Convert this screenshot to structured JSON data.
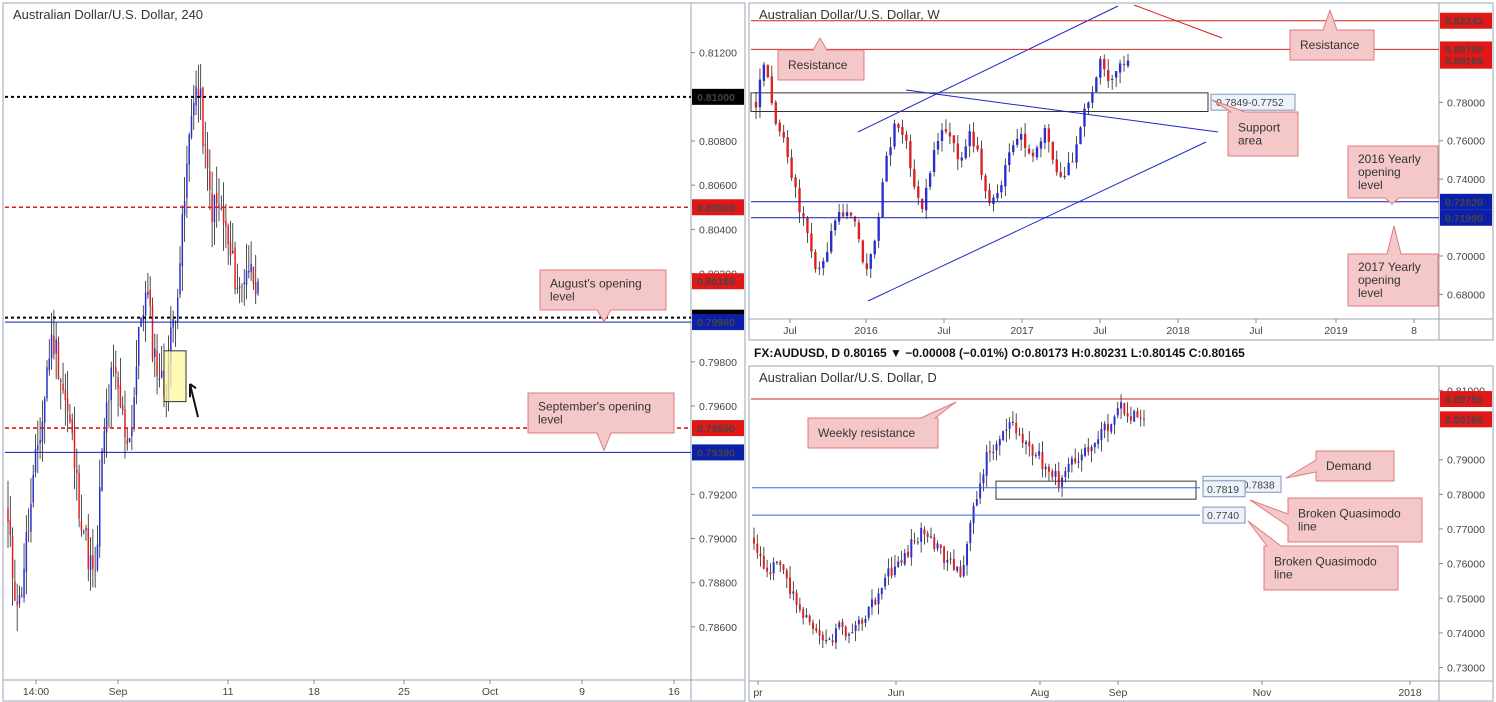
{
  "chart_data": [
    {
      "id": "h4",
      "type": "candlestick",
      "title": "Australian Dollar/U.S. Dollar, 240",
      "x_ticks": [
        "14:00",
        "Sep",
        "11",
        "18",
        "25",
        "Oct",
        "9",
        "16"
      ],
      "y_ticks": [
        "0.81200",
        "0.80800",
        "0.80600",
        "0.80400",
        "0.80200",
        "0.79800",
        "0.79600",
        "0.79200",
        "0.79000",
        "0.78800",
        "0.78600"
      ],
      "ylim": [
        0.7845,
        0.8128
      ],
      "levels": [
        {
          "label": "0.81000",
          "value": 0.81,
          "style": "dotted-black"
        },
        {
          "label": "0.80500",
          "value": 0.805,
          "style": "dashed-red"
        },
        {
          "label": "0.80165",
          "value": 0.80165,
          "style": "price-red"
        },
        {
          "label": "0.80000",
          "value": 0.8,
          "style": "dotted-black"
        },
        {
          "label": "0.79980",
          "value": 0.7998,
          "style": "solid-blue"
        },
        {
          "label": "0.79500",
          "value": 0.795,
          "style": "dashed-red"
        },
        {
          "label": "0.79390",
          "value": 0.7939,
          "style": "solid-blue"
        }
      ],
      "annotations": [
        {
          "label": "August's opening level",
          "target_price": 0.8
        },
        {
          "label": "September's opening level",
          "target_price": 0.7939
        }
      ],
      "path": [
        0.7905,
        0.788,
        0.787,
        0.7895,
        0.7915,
        0.794,
        0.7955,
        0.7985,
        0.799,
        0.7975,
        0.796,
        0.7945,
        0.792,
        0.7905,
        0.789,
        0.788,
        0.793,
        0.796,
        0.7975,
        0.7965,
        0.795,
        0.7945,
        0.7975,
        0.8005,
        0.801,
        0.7985,
        0.7975,
        0.7965,
        0.799,
        0.801,
        0.804,
        0.8075,
        0.8105,
        0.81,
        0.807,
        0.805,
        0.805,
        0.8045,
        0.803,
        0.802,
        0.801,
        0.8025,
        0.802,
        0.80165
      ]
    },
    {
      "id": "weekly",
      "type": "candlestick",
      "title": "Australian Dollar/U.S. Dollar, W",
      "x_ticks": [
        "Jul",
        "2016",
        "Jul",
        "2017",
        "Jul",
        "2018",
        "Jul",
        "2019",
        "8"
      ],
      "y_ticks": [
        "0.78000",
        "0.76000",
        "0.74000",
        "0.70000",
        "0.68000"
      ],
      "ylim": [
        0.6745,
        0.8275
      ],
      "levels": [
        {
          "label": "0.82243",
          "value": 0.82243,
          "style": "solid-red"
        },
        {
          "label": "0.80750",
          "value": 0.8075,
          "style": "solid-red"
        },
        {
          "label": "0.80165",
          "value": 0.80165,
          "style": "price-red"
        },
        {
          "label": "0.72820",
          "value": 0.7282,
          "style": "solid-blue"
        },
        {
          "label": "0.71990",
          "value": 0.7199,
          "style": "solid-blue"
        }
      ],
      "zone": {
        "label": "0.7849-0.7752",
        "high": 0.7849,
        "low": 0.7752
      },
      "annotations": [
        {
          "label": "Resistance"
        },
        {
          "label": "Resistance"
        },
        {
          "label": "Support area"
        },
        {
          "label": "2016 Yearly opening level"
        },
        {
          "label": "2017 Yearly opening level"
        }
      ],
      "path": [
        0.78,
        0.8,
        0.77,
        0.76,
        0.74,
        0.72,
        0.7,
        0.69,
        0.71,
        0.72,
        0.725,
        0.71,
        0.69,
        0.715,
        0.75,
        0.77,
        0.76,
        0.74,
        0.725,
        0.75,
        0.765,
        0.76,
        0.75,
        0.765,
        0.75,
        0.725,
        0.73,
        0.75,
        0.765,
        0.755,
        0.75,
        0.765,
        0.75,
        0.74,
        0.75,
        0.77,
        0.785,
        0.8,
        0.79,
        0.8,
        0.80165
      ]
    },
    {
      "id": "daily",
      "type": "candlestick",
      "title": "Australian Dollar/U.S. Dollar, D",
      "header": "FX:AUDUSD, D  0.80165 ▼ −0.00008 (−0.01%)  O:0.80173  H:0.80231  L:0.80145  C:0.80165",
      "x_ticks": [
        "pr",
        "Jun",
        "Aug",
        "Sep",
        "Nov",
        "2018"
      ],
      "y_ticks": [
        "0.81000",
        "0.79000",
        "0.78000",
        "0.77000",
        "0.76000",
        "0.75000",
        "0.74000",
        "0.73000"
      ],
      "ylim": [
        0.729,
        0.813
      ],
      "levels": [
        {
          "label": "0.80750",
          "value": 0.8075,
          "style": "solid-red"
        },
        {
          "label": "0.80165",
          "value": 0.80165,
          "style": "price-red"
        }
      ],
      "boxes": [
        {
          "label": "0.7786-0.7838",
          "high": 0.7838,
          "low": 0.7786
        },
        {
          "label": "0.7819",
          "value": 0.7819
        },
        {
          "label": "0.7740",
          "value": 0.774
        }
      ],
      "annotations": [
        {
          "label": "Weekly resistance"
        },
        {
          "label": "Demand"
        },
        {
          "label": "Broken Quasimodo line"
        },
        {
          "label": "Broken Quasimodo line"
        }
      ],
      "path": [
        0.765,
        0.756,
        0.76,
        0.752,
        0.745,
        0.739,
        0.737,
        0.742,
        0.738,
        0.745,
        0.75,
        0.758,
        0.76,
        0.766,
        0.77,
        0.764,
        0.76,
        0.758,
        0.775,
        0.79,
        0.795,
        0.8,
        0.796,
        0.792,
        0.788,
        0.784,
        0.79,
        0.792,
        0.795,
        0.8,
        0.806,
        0.803,
        0.80165
      ]
    }
  ]
}
